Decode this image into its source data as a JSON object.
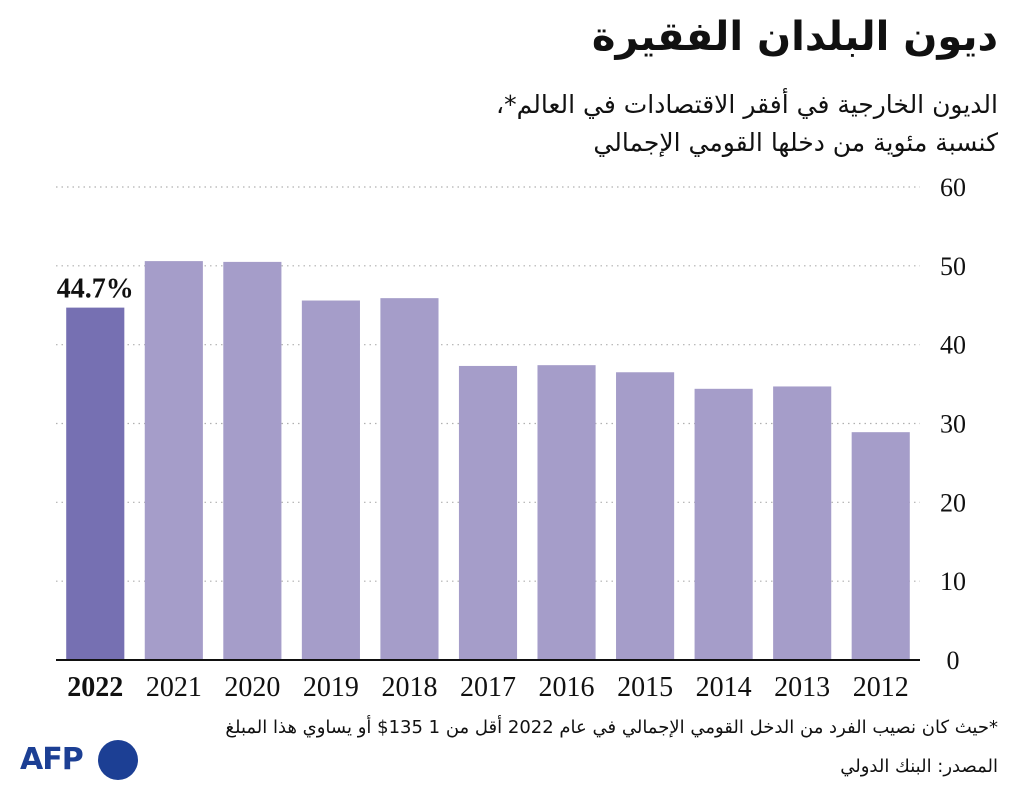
{
  "title": "ديون البلدان الفقيرة",
  "subtitle_line1": "الديون الخارجية في أفقر الاقتصادات في العالم*،",
  "subtitle_line2": "كنسبة مئوية من دخلها القومي الإجمالي",
  "footnote": "*حيث كان نصيب الفرد من الدخل القومي الإجمالي في عام 2022 أقل من 1 135$ أو يساوي هذا المبلغ",
  "source": "المصدر: البنك الدولي",
  "logo_text": "AFP",
  "colors": {
    "bar": "#a59dc9",
    "bar_highlight": "#7670b2",
    "gridline": "#b0b0b0",
    "axis": "#111111",
    "logo": "#1c3f94"
  },
  "chart_data": {
    "type": "bar",
    "categories": [
      "2022",
      "2021",
      "2020",
      "2019",
      "2018",
      "2017",
      "2016",
      "2015",
      "2014",
      "2013",
      "2012"
    ],
    "values": [
      44.7,
      50.6,
      50.5,
      45.6,
      45.9,
      37.3,
      37.4,
      36.5,
      34.4,
      34.7,
      28.9
    ],
    "ylim": [
      0,
      60
    ],
    "yticks": [
      0,
      10,
      20,
      30,
      40,
      50,
      60
    ],
    "y_axis_position": "right",
    "highlight_category": "2022",
    "highlight_label": "44.7%",
    "grid": true,
    "grid_style": "dotted"
  }
}
